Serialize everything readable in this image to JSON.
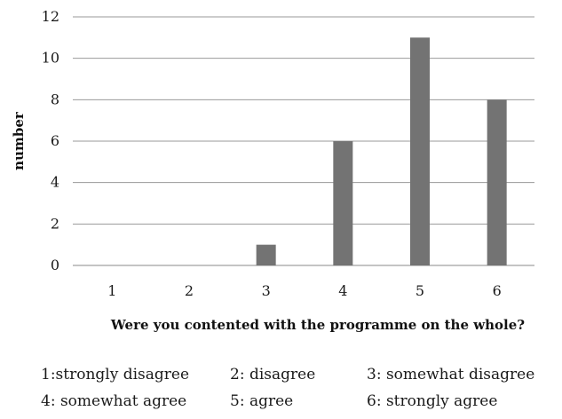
{
  "chart_data": {
    "type": "bar",
    "categories": [
      "1",
      "2",
      "3",
      "4",
      "5",
      "6"
    ],
    "values": [
      0,
      0,
      1,
      6,
      11,
      8
    ],
    "ylabel": "number",
    "xlabel": "Were you contented with the programme on the whole?",
    "ylim": [
      0,
      12
    ],
    "yticks": [
      "0",
      "2",
      "4",
      "6",
      "8",
      "10",
      "12"
    ],
    "grid": true,
    "bar_color": "#737373"
  },
  "legend": {
    "rows": [
      [
        "1:strongly disagree",
        "2: disagree",
        "3: somewhat disagree"
      ],
      [
        "4: somewhat agree",
        "5: agree",
        "6: strongly agree"
      ]
    ]
  }
}
